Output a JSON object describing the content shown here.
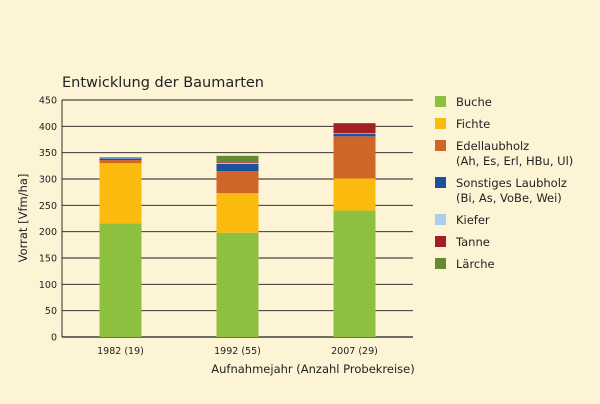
{
  "chart_data": {
    "type": "bar",
    "stacked": true,
    "title": "Entwicklung der Baumarten",
    "xlabel": "Aufnahmejahr (Anzahl Probekreise)",
    "ylabel": "Vorrat [Vfm/ha]",
    "ylim": [
      0,
      450
    ],
    "yticks": [
      0,
      50,
      100,
      150,
      200,
      250,
      300,
      350,
      400,
      450
    ],
    "grid": true,
    "legend_position": "right",
    "categories": [
      "1982 (19)",
      "1992 (55)",
      "2007 (29)"
    ],
    "series": [
      {
        "name": "Buche",
        "color": "#8dc03f",
        "values": [
          216,
          198,
          240
        ]
      },
      {
        "name": "Fichte",
        "color": "#fbbb0e",
        "values": [
          114,
          75,
          61
        ]
      },
      {
        "name": "Edellaubholz",
        "label_lines": [
          "Edellaubholz",
          "(Ah, Es, Erl, HBu, Ul)"
        ],
        "color": "#cf6627",
        "values": [
          6,
          42,
          80
        ]
      },
      {
        "name": "Sonstiges Laubholz",
        "label_lines": [
          "Sonstiges Laubholz",
          "(Bi, As, VoBe, Wei)"
        ],
        "color": "#1d509b",
        "values": [
          3,
          14,
          5
        ]
      },
      {
        "name": "Kiefer",
        "color": "#a7d0ee",
        "values": [
          1,
          2,
          1
        ]
      },
      {
        "name": "Tanne",
        "color": "#a31f23",
        "values": [
          1,
          2,
          19
        ]
      },
      {
        "name": "Lärche",
        "color": "#608b30",
        "values": [
          0,
          11,
          0
        ]
      }
    ]
  }
}
